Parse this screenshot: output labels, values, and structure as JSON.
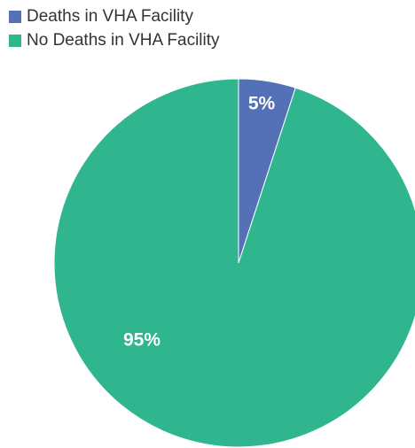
{
  "chart_data": {
    "type": "pie",
    "categories": [
      "Deaths in VHA Facility",
      "No Deaths in VHA Facility"
    ],
    "values": [
      5,
      95
    ],
    "value_labels": [
      "5%",
      "95%"
    ],
    "colors": [
      "#5470b7",
      "#2fb68f"
    ],
    "legend": "top-left"
  }
}
